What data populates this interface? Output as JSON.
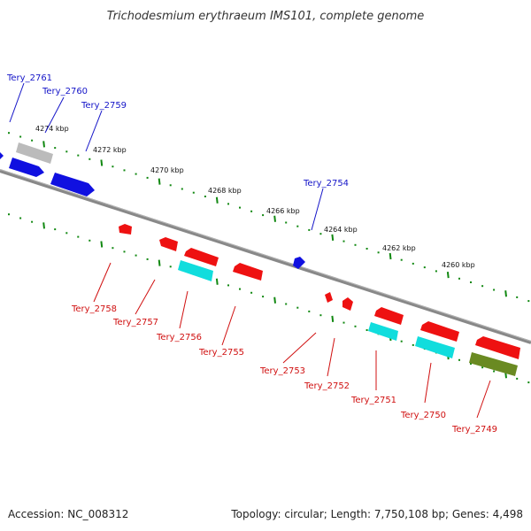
{
  "title": "Trichodesmium erythraeum IMS101, complete genome",
  "footer": {
    "accession": "Accession: NC_008312",
    "summary": "Topology: circular; Length: 7,750,108 bp; Genes: 4,498"
  },
  "colors": {
    "forward_label": "#1515c8",
    "reverse_label": "#d01010",
    "backbone": "#888888",
    "tick": "#118811",
    "blue": "#1010e0",
    "red": "#ee1111",
    "cyan": "#11dddd",
    "gray": "#bbbbbb",
    "olive": "#6a8a22"
  },
  "tick_labels": [
    "4274 kbp",
    "4272 kbp",
    "4270 kbp",
    "4268 kbp",
    "4266 kbp",
    "4264 kbp",
    "4262 kbp",
    "4260 kbp"
  ],
  "forward_genes": [
    "Tery_2761",
    "Tery_2760",
    "Tery_2759",
    "Tery_2754"
  ],
  "reverse_genes": [
    "Tery_2758",
    "Tery_2757",
    "Tery_2756",
    "Tery_2755",
    "Tery_2753",
    "Tery_2752",
    "Tery_2751",
    "Tery_2750",
    "Tery_2749"
  ]
}
